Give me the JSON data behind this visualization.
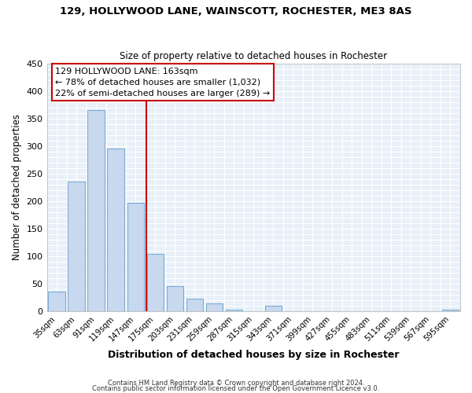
{
  "title": "129, HOLLYWOOD LANE, WAINSCOTT, ROCHESTER, ME3 8AS",
  "subtitle": "Size of property relative to detached houses in Rochester",
  "xlabel": "Distribution of detached houses by size in Rochester",
  "ylabel": "Number of detached properties",
  "bar_color": "#c8d8ee",
  "bar_edge_color": "#7aadd4",
  "bg_color": "#e8f0f8",
  "grid_color": "#ffffff",
  "fig_bg_color": "#ffffff",
  "categories": [
    "35sqm",
    "63sqm",
    "91sqm",
    "119sqm",
    "147sqm",
    "175sqm",
    "203sqm",
    "231sqm",
    "259sqm",
    "287sqm",
    "315sqm",
    "343sqm",
    "371sqm",
    "399sqm",
    "427sqm",
    "455sqm",
    "483sqm",
    "511sqm",
    "539sqm",
    "567sqm",
    "595sqm"
  ],
  "values": [
    35,
    235,
    365,
    295,
    197,
    104,
    45,
    22,
    14,
    3,
    0,
    9,
    0,
    0,
    0,
    0,
    0,
    0,
    0,
    0,
    2
  ],
  "vline_color": "#cc0000",
  "annotation_line1": "129 HOLLYWOOD LANE: 163sqm",
  "annotation_line2": "← 78% of detached houses are smaller (1,032)",
  "annotation_line3": "22% of semi-detached houses are larger (289) →",
  "annotation_box_color": "#ffffff",
  "annotation_box_edge": "#cc0000",
  "ylim": [
    0,
    450
  ],
  "yticks": [
    0,
    50,
    100,
    150,
    200,
    250,
    300,
    350,
    400,
    450
  ],
  "footer_line1": "Contains HM Land Registry data © Crown copyright and database right 2024.",
  "footer_line2": "Contains public sector information licensed under the Open Government Licence v3.0."
}
